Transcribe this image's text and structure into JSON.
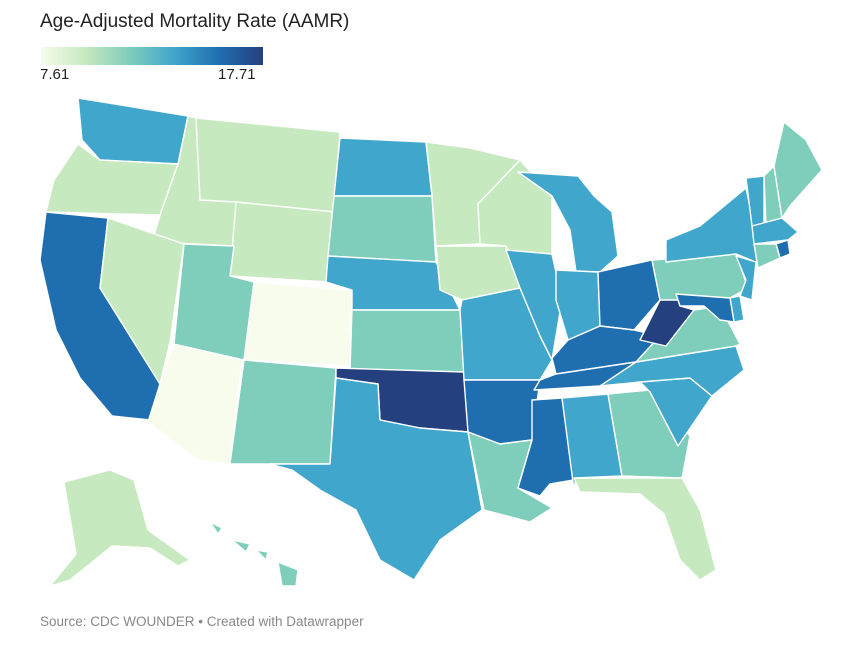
{
  "title": "Age-Adjusted Mortality Rate (AAMR)",
  "legend": {
    "min": "7.61",
    "max": "17.71",
    "min_value": 7.61,
    "max_value": 17.71,
    "colors": [
      "#f7fcec",
      "#c7e9c0",
      "#7fcdbb",
      "#41a6cc",
      "#1f6fb0",
      "#24407f"
    ]
  },
  "source": "Source: CDC WOUNDER • Created with Datawrapper",
  "map_data": {
    "type": "choropleth",
    "region": "United States",
    "states": [
      {
        "state": "WA",
        "level": 3
      },
      {
        "state": "OR",
        "level": 1
      },
      {
        "state": "CA",
        "level": 4
      },
      {
        "state": "ID",
        "level": 1
      },
      {
        "state": "NV",
        "level": 1
      },
      {
        "state": "AZ",
        "level": 0
      },
      {
        "state": "MT",
        "level": 1
      },
      {
        "state": "WY",
        "level": 1
      },
      {
        "state": "UT",
        "level": 2
      },
      {
        "state": "CO",
        "level": 0
      },
      {
        "state": "NM",
        "level": 2
      },
      {
        "state": "ND",
        "level": 3
      },
      {
        "state": "SD",
        "level": 2
      },
      {
        "state": "NE",
        "level": 3
      },
      {
        "state": "KS",
        "level": 2
      },
      {
        "state": "OK",
        "level": 5
      },
      {
        "state": "TX",
        "level": 3
      },
      {
        "state": "MN",
        "level": 1
      },
      {
        "state": "IA",
        "level": 1
      },
      {
        "state": "MO",
        "level": 3
      },
      {
        "state": "AR",
        "level": 4
      },
      {
        "state": "LA",
        "level": 2
      },
      {
        "state": "WI",
        "level": 1
      },
      {
        "state": "IL",
        "level": 3
      },
      {
        "state": "MI",
        "level": 3
      },
      {
        "state": "IN",
        "level": 3
      },
      {
        "state": "OH",
        "level": 4
      },
      {
        "state": "KY",
        "level": 4
      },
      {
        "state": "TN",
        "level": 4
      },
      {
        "state": "MS",
        "level": 4
      },
      {
        "state": "AL",
        "level": 3
      },
      {
        "state": "GA",
        "level": 2
      },
      {
        "state": "FL",
        "level": 1
      },
      {
        "state": "SC",
        "level": 3
      },
      {
        "state": "NC",
        "level": 3
      },
      {
        "state": "VA",
        "level": 2
      },
      {
        "state": "WV",
        "level": 5
      },
      {
        "state": "PA",
        "level": 2
      },
      {
        "state": "NY",
        "level": 3
      },
      {
        "state": "VT",
        "level": 3
      },
      {
        "state": "NH",
        "level": 2
      },
      {
        "state": "ME",
        "level": 2
      },
      {
        "state": "MA",
        "level": 3
      },
      {
        "state": "RI",
        "level": 4
      },
      {
        "state": "CT",
        "level": 2
      },
      {
        "state": "NJ",
        "level": 3
      },
      {
        "state": "DE",
        "level": 3
      },
      {
        "state": "MD",
        "level": 4
      },
      {
        "state": "AK",
        "level": 1
      },
      {
        "state": "HI",
        "level": 2
      }
    ]
  }
}
